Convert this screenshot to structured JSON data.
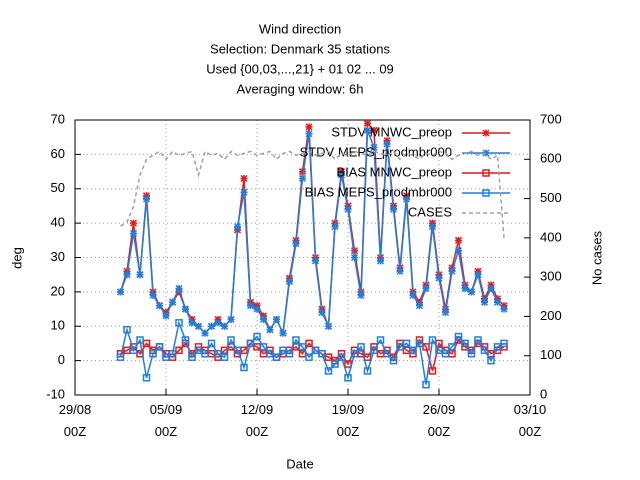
{
  "chart_data": {
    "type": "line",
    "title": [
      "Wind direction",
      "Selection: Denmark     35 stations",
      "Used {00,03,...,21} + 01 02 ... 09",
      "Averaging window:  6h"
    ],
    "xlabel": "Date",
    "ylabel": "deg",
    "y2label": "No cases",
    "xlim": [
      0,
      35
    ],
    "ylim": [
      -10,
      70
    ],
    "y2lim": [
      0,
      700
    ],
    "xticks": [
      {
        "value": 0,
        "label": "29/08 00Z"
      },
      {
        "value": 7,
        "label": "05/09 00Z"
      },
      {
        "value": 14,
        "label": "12/09 00Z"
      },
      {
        "value": 21,
        "label": "19/09 00Z"
      },
      {
        "value": 28,
        "label": "26/09 00Z"
      },
      {
        "value": 35,
        "label": "03/10 00Z"
      }
    ],
    "yticks": [
      -10,
      0,
      10,
      20,
      30,
      40,
      50,
      60,
      70
    ],
    "y2ticks": [
      0,
      100,
      200,
      300,
      400,
      500,
      600,
      700
    ],
    "grid": true,
    "legend": "top-right",
    "x": [
      3.5,
      4,
      4.5,
      5,
      5.5,
      6,
      6.5,
      7,
      7.5,
      8,
      8.5,
      9,
      9.5,
      10,
      10.5,
      11,
      11.5,
      12,
      12.5,
      13,
      13.5,
      14,
      14.5,
      15,
      15.5,
      16,
      16.5,
      17,
      17.5,
      18,
      18.5,
      19,
      19.5,
      20,
      20.5,
      21,
      21.5,
      22,
      22.5,
      23,
      23.5,
      24,
      24.5,
      25,
      25.5,
      26,
      26.5,
      27,
      27.5,
      28,
      28.5,
      29,
      29.5,
      30,
      30.5,
      31,
      31.5,
      32,
      32.5,
      33
    ],
    "series": [
      {
        "name": "STDV MNWC_preop",
        "color": "#e41a1c",
        "marker": "star",
        "values": [
          20,
          26,
          40,
          25,
          48,
          20,
          16,
          14,
          17,
          20,
          15,
          12,
          10,
          8,
          10,
          12,
          10,
          12,
          38,
          53,
          17,
          16,
          13,
          9,
          12,
          8,
          24,
          35,
          55,
          68,
          30,
          15,
          10,
          40,
          55,
          45,
          32,
          20,
          69,
          67,
          30,
          64,
          45,
          27,
          48,
          20,
          17,
          22,
          40,
          25,
          15,
          27,
          35,
          22,
          20,
          26,
          18,
          22,
          18,
          16
        ]
      },
      {
        "name": "STDV MEPS_prodmbr000",
        "color": "#1e7fe0",
        "marker": "star",
        "values": [
          20,
          25,
          37,
          25,
          47,
          19,
          16,
          13,
          17,
          21,
          15,
          11,
          10,
          8,
          10,
          11,
          10,
          12,
          39,
          49,
          16,
          15,
          12,
          9,
          12,
          8,
          23,
          34,
          53,
          66,
          29,
          14,
          10,
          39,
          54,
          44,
          30,
          19,
          67,
          62,
          29,
          63,
          44,
          26,
          47,
          19,
          16,
          21,
          39,
          24,
          14,
          26,
          32,
          21,
          20,
          25,
          17,
          21,
          17,
          15
        ]
      },
      {
        "name": "BIAS MNWC_preop",
        "color": "#e41a1c",
        "marker": "square",
        "values": [
          2,
          3,
          4,
          2,
          5,
          3,
          4,
          2,
          1,
          3,
          5,
          2,
          4,
          3,
          2,
          1,
          3,
          4,
          2,
          3,
          5,
          4,
          2,
          3,
          1,
          2,
          3,
          4,
          2,
          5,
          3,
          2,
          1,
          0,
          2,
          -1,
          3,
          2,
          1,
          4,
          2,
          3,
          1,
          5,
          3,
          2,
          6,
          4,
          -3,
          5,
          3,
          2,
          6,
          4,
          3,
          5,
          4,
          2,
          3,
          4
        ]
      },
      {
        "name": "BIAS MEPS_prodmbr000",
        "color": "#1e7fe0",
        "marker": "square",
        "values": [
          1,
          9,
          3,
          6,
          -5,
          2,
          4,
          1,
          2,
          11,
          6,
          1,
          3,
          2,
          5,
          2,
          1,
          6,
          3,
          -2,
          5,
          7,
          4,
          2,
          1,
          3,
          2,
          6,
          4,
          1,
          3,
          2,
          -3,
          -1,
          1,
          -5,
          2,
          4,
          -3,
          3,
          6,
          2,
          0,
          4,
          5,
          3,
          5,
          -7,
          6,
          3,
          2,
          4,
          7,
          5,
          2,
          6,
          3,
          0,
          4,
          5
        ]
      },
      {
        "name": "CASES",
        "color": "#a0a0a0",
        "marker": "none",
        "dash": true,
        "axis": "y2",
        "values": [
          430,
          440,
          480,
          560,
          600,
          610,
          620,
          600,
          620,
          610,
          615,
          620,
          560,
          620,
          610,
          615,
          600,
          620,
          610,
          615,
          620,
          610,
          615,
          620,
          600,
          615,
          620,
          610,
          615,
          620,
          610,
          615,
          620,
          600,
          615,
          610,
          620,
          615,
          610,
          620,
          615,
          610,
          620,
          600,
          615,
          610,
          600,
          615,
          610,
          620,
          615,
          600,
          610,
          615,
          620,
          610,
          615,
          600,
          610,
          400
        ]
      }
    ]
  }
}
